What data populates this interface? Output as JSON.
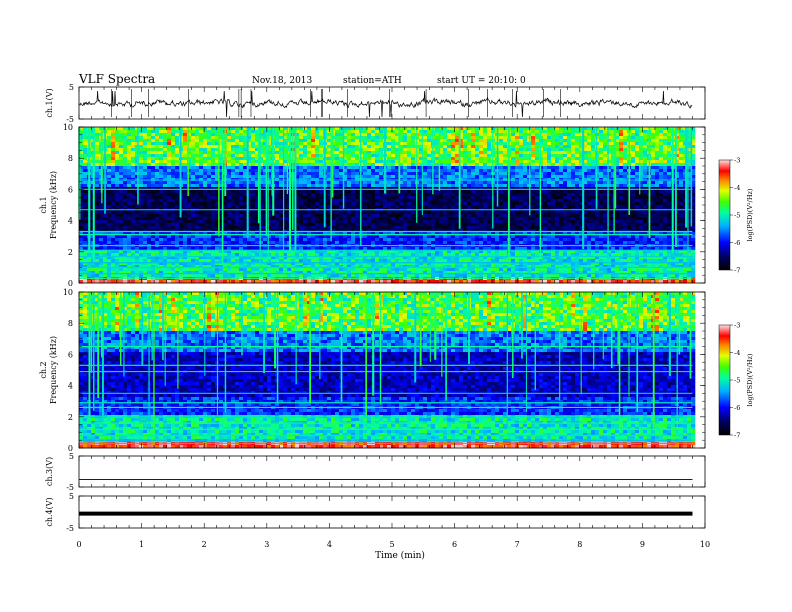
{
  "header": {
    "title": "VLF Spectra",
    "date": "Nov.18, 2013",
    "station": "station=ATH",
    "start_ut": "start UT = 20:10: 0"
  },
  "chart_data": [
    {
      "id": "ch1_waveform",
      "type": "line",
      "ylabel": "ch.1(V)",
      "ylim": [
        -5,
        5
      ],
      "yticks": [
        "5",
        "-5"
      ],
      "xlim": [
        0,
        10
      ],
      "data_xrange": [
        0,
        9.8
      ],
      "description_values": "noisy waveform centered near 0 V with spikes",
      "baseline_v": 0
    },
    {
      "id": "ch1_spectrogram",
      "type": "heatmap",
      "ylabel": "ch.1\nFrequency (kHz)",
      "ylabel_lines": [
        "ch.1",
        "Frequency (kHz)"
      ],
      "ylim": [
        0,
        10
      ],
      "yticks": [
        "0",
        "2",
        "4",
        "6",
        "8",
        "10"
      ],
      "xlim": [
        0,
        10
      ],
      "data_xrange": [
        0,
        9.8
      ],
      "colorbar": {
        "label": "log(PSD)(V²/Hz)",
        "range": [
          -7,
          -3
        ],
        "ticks": [
          "-3",
          "-4",
          "-5",
          "-6",
          "-7"
        ]
      }
    },
    {
      "id": "ch2_spectrogram",
      "type": "heatmap",
      "ylabel": "ch.2\nFrequency (kHz)",
      "ylabel_lines": [
        "ch.2",
        "Frequency (kHz)"
      ],
      "ylim": [
        0,
        10
      ],
      "yticks": [
        "0",
        "2",
        "4",
        "6",
        "8",
        "10"
      ],
      "xlim": [
        0,
        10
      ],
      "data_xrange": [
        0,
        9.8
      ],
      "colorbar": {
        "label": "log(PSD)(V²/Hz)",
        "range": [
          -7,
          -3
        ],
        "ticks": [
          "-3",
          "-4",
          "-5",
          "-6",
          "-7"
        ]
      }
    },
    {
      "id": "ch3_waveform",
      "type": "line",
      "ylabel": "ch.3(V)",
      "ylim": [
        -5,
        5
      ],
      "yticks": [
        "5",
        "-5"
      ],
      "xlim": [
        0,
        10
      ],
      "data_xrange": [
        0,
        9.8
      ],
      "baseline_v": -2.6
    },
    {
      "id": "ch4_waveform",
      "type": "line",
      "ylabel": "ch.4(V)",
      "ylim": [
        -5,
        5
      ],
      "yticks": [
        "5",
        "-5"
      ],
      "xlim": [
        0,
        10
      ],
      "data_xrange": [
        0,
        9.8
      ],
      "baseline_v": -0.5
    }
  ],
  "x_axis": {
    "label": "Time (min)",
    "ticks": [
      "0",
      "1",
      "2",
      "3",
      "4",
      "5",
      "6",
      "7",
      "8",
      "9",
      "10"
    ]
  }
}
